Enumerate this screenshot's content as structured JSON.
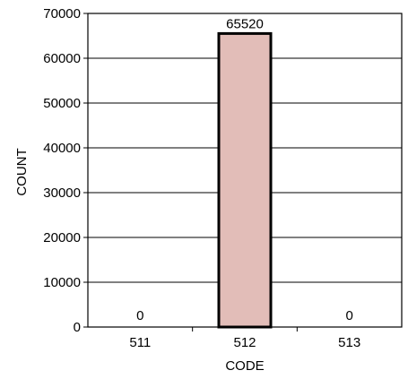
{
  "chart_data": {
    "type": "bar",
    "categories": [
      "511",
      "512",
      "513"
    ],
    "values": [
      0,
      65520,
      0
    ],
    "data_labels": [
      "0",
      "65520",
      "0"
    ],
    "title": "",
    "xlabel": "CODE",
    "ylabel": "COUNT",
    "ylim": [
      0,
      70000
    ],
    "yticks": [
      0,
      10000,
      20000,
      30000,
      40000,
      50000,
      60000,
      70000
    ],
    "ytick_labels": [
      "0",
      "10000",
      "20000",
      "30000",
      "40000",
      "50000",
      "60000",
      "70000"
    ],
    "grid": true,
    "legend": "none"
  },
  "colors": {
    "bar_fill": "#e2bdb8",
    "bar_stroke": "#000000",
    "axis": "#000000"
  }
}
